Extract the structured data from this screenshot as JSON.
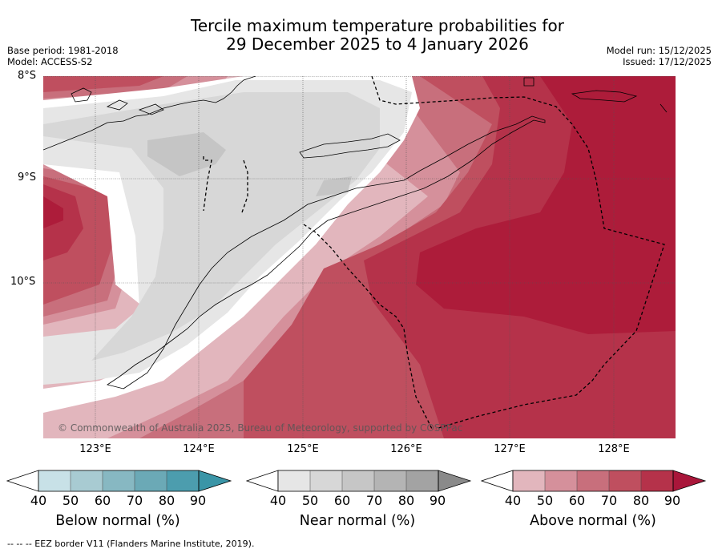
{
  "title": {
    "line1": "Tercile maximum temperature probabilities for",
    "line2": "29 December 2025 to 4 January 2026"
  },
  "meta": {
    "base_period": "Base period: 1981-2018",
    "model": "Model: ACCESS-S2",
    "model_run": "Model run: 15/12/2025",
    "issued": "Issued: 17/12/2025"
  },
  "map": {
    "lat_labels": [
      "8°S",
      "9°S",
      "10°S"
    ],
    "lon_labels": [
      "123°E",
      "124°E",
      "125°E",
      "126°E",
      "127°E",
      "128°E"
    ],
    "copyright": "© Commonwealth of Australia 2025, Bureau of Meteorology, supported by COSPPac",
    "colors": {
      "near_40": "#e6e6e6",
      "near_50": "#d7d7d7",
      "near_60": "#c5c5c5",
      "above_40": "#e2b6bd",
      "above_50": "#d5909b",
      "above_60": "#c86f7c",
      "above_70": "#bf4f5f",
      "above_80": "#b5324a",
      "above_90": "#ad1c3a"
    }
  },
  "colorbars": [
    {
      "name": "below",
      "title": "Below normal (%)",
      "ticks": [
        "40",
        "50",
        "60",
        "70",
        "80",
        "90"
      ],
      "colors": [
        "#c8e1e7",
        "#a8cbd2",
        "#87b8c2",
        "#6ba9b6",
        "#4c9dae",
        "#3a95a7"
      ]
    },
    {
      "name": "near",
      "title": "Near normal (%)",
      "ticks": [
        "40",
        "50",
        "60",
        "70",
        "80",
        "90"
      ],
      "colors": [
        "#e6e6e6",
        "#d7d7d7",
        "#c6c6c6",
        "#b4b4b4",
        "#a3a3a3",
        "#8a8a8a"
      ]
    },
    {
      "name": "above",
      "title": "Above normal (%)",
      "ticks": [
        "40",
        "50",
        "60",
        "70",
        "80",
        "90"
      ],
      "colors": [
        "#e2b6bd",
        "#d5909b",
        "#c86f7c",
        "#bf4f5f",
        "#b5324a",
        "#a9163a"
      ]
    }
  ],
  "footnote": "--  --  -- EEZ border V11 (Flanders Marine Institute, 2019)."
}
